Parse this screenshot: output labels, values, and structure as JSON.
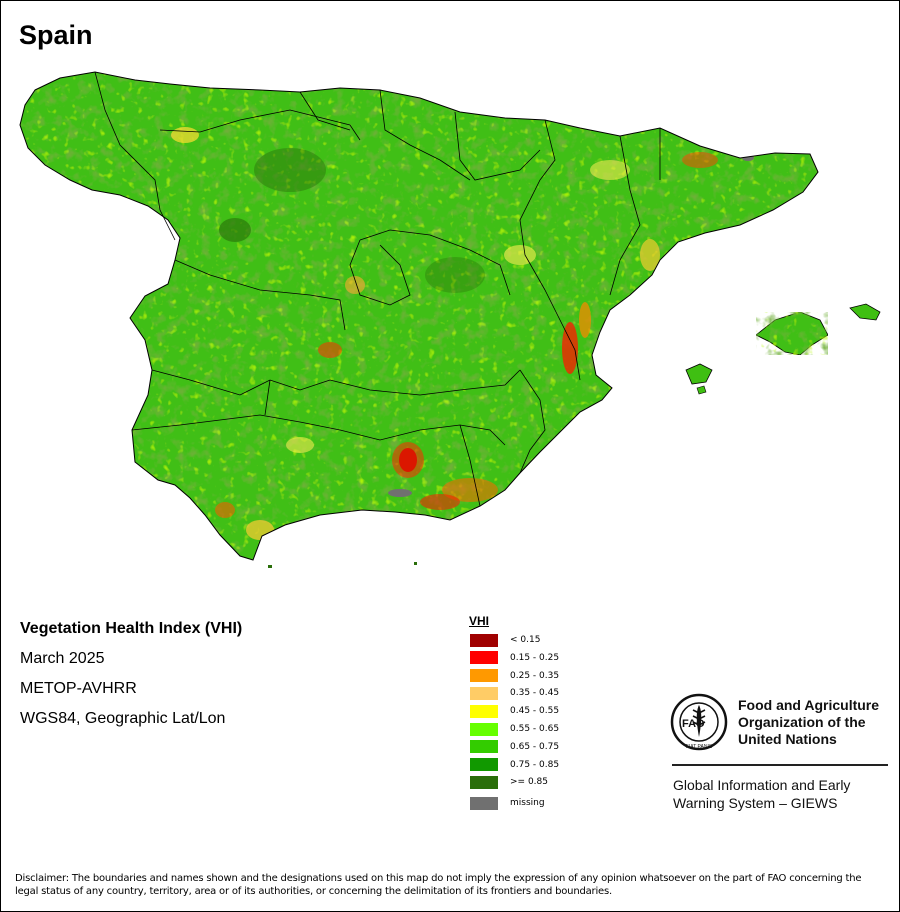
{
  "title": "Spain",
  "map_info": {
    "index_name": "Vegetation Health Index (VHI)",
    "period": "March 2025",
    "sensor": "METOP-AVHRR",
    "projection": "WGS84, Geographic Lat/Lon"
  },
  "legend": {
    "title": "VHI",
    "classes": [
      {
        "label": "< 0.15",
        "color": "#a00000"
      },
      {
        "label": "0.15 - 0.25",
        "color": "#ff0000"
      },
      {
        "label": "0.25 - 0.35",
        "color": "#ff9900"
      },
      {
        "label": "0.35 - 0.45",
        "color": "#ffcc66"
      },
      {
        "label": "0.45 - 0.55",
        "color": "#ffff00"
      },
      {
        "label": "0.55 - 0.65",
        "color": "#66ff00"
      },
      {
        "label": "0.65 - 0.75",
        "color": "#33cc00"
      },
      {
        "label": "0.75 - 0.85",
        "color": "#119900"
      },
      {
        "label": ">= 0.85",
        "color": "#2a6e0a"
      }
    ],
    "missing": {
      "label": "missing",
      "color": "#707070"
    }
  },
  "organization": {
    "name_line1": "Food and Agriculture",
    "name_line2": "Organization of the",
    "name_line3": "United Nations",
    "logo_text": "FAO",
    "logo_motto": "FIAT PANIS",
    "system_line1": "Global Information and Early",
    "system_line2": "Warning System – GIEWS"
  },
  "disclaimer": "Disclaimer: The boundaries and names shown and the designations used on this map do not imply the expression of any opinion whatsoever on the part of FAO concerning the legal status of any country, territory, area or of its authorities, or concerning the delimitation of its frontiers and boundaries."
}
